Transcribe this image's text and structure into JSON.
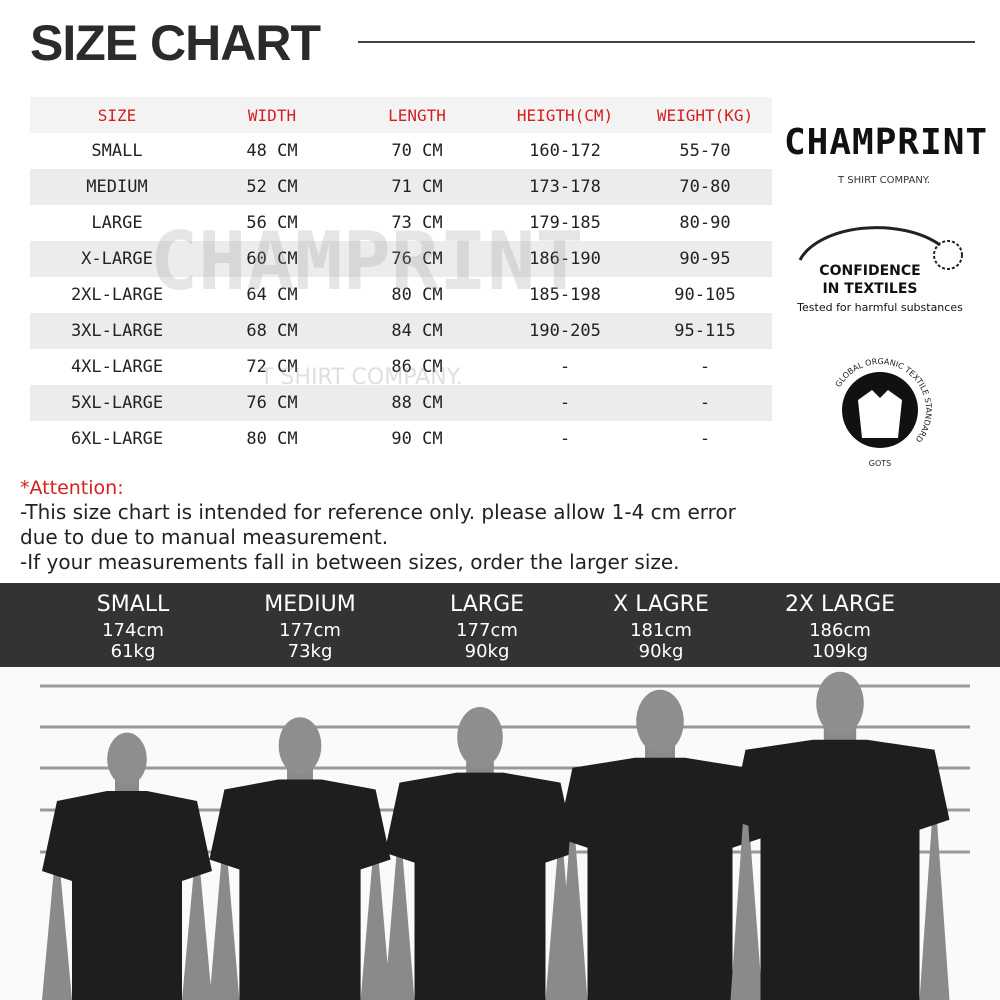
{
  "header": {
    "title": "SIZE CHART"
  },
  "table": {
    "columns": [
      "SIZE",
      "WIDTH",
      "LENGTH",
      "HEIGTH(CM)",
      "WEIGHT(KG)"
    ],
    "rows": [
      [
        "SMALL",
        "48 CM",
        "70 CM",
        "160-172",
        "55-70"
      ],
      [
        "MEDIUM",
        "52 CM",
        "71 CM",
        "173-178",
        "70-80"
      ],
      [
        "LARGE",
        "56 CM",
        "73 CM",
        "179-185",
        "80-90"
      ],
      [
        "X-LARGE",
        "60 CM",
        "76 CM",
        "186-190",
        "90-95"
      ],
      [
        "2XL-LARGE",
        "64 CM",
        "80 CM",
        "185-198",
        "90-105"
      ],
      [
        "3XL-LARGE",
        "68 CM",
        "84 CM",
        "190-205",
        "95-115"
      ],
      [
        "4XL-LARGE",
        "72 CM",
        "86 CM",
        "-",
        "-"
      ],
      [
        "5XL-LARGE",
        "76 CM",
        "88 CM",
        "-",
        "-"
      ],
      [
        "6XL-LARGE",
        "80 CM",
        "90 CM",
        "-",
        "-"
      ]
    ]
  },
  "brand": {
    "name": "CHAMPRINT",
    "tagline": "T SHIRT COMPANY."
  },
  "badges": {
    "confidence": {
      "lines": [
        "CONFIDENCE",
        "IN TEXTILES"
      ],
      "subtitle": "Tested for harmful substances"
    },
    "gots": {
      "ring": "GLOBAL ORGANIC TEXTILE STANDARD",
      "short": "GOTS"
    }
  },
  "notes": {
    "heading": "*Attention:",
    "lines": [
      "-This size chart is intended for reference only. please allow 1-4 cm error",
      "due to due to manual measurement.",
      "-If your measurements fall in between sizes, order the larger size."
    ]
  },
  "models": [
    {
      "size": "SMALL",
      "height": "174cm",
      "weight": "61kg"
    },
    {
      "size": "MEDIUM",
      "height": "177cm",
      "weight": "73kg"
    },
    {
      "size": "LARGE",
      "height": "177cm",
      "weight": "90kg"
    },
    {
      "size": "X LAGRE",
      "height": "181cm",
      "weight": "90kg"
    },
    {
      "size": "2X LARGE",
      "height": "186cm",
      "weight": "109kg"
    }
  ]
}
